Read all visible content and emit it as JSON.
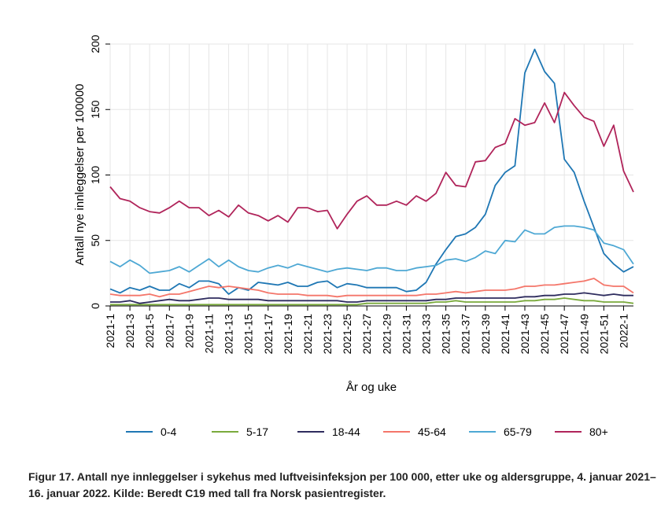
{
  "caption": "Figur 17. Antall nye innleggelser i sykehus med luftveisinfeksjon per 100 000, etter uke og aldersgruppe, 4. januar 2021–16. januar 2022. Kilde: Beredt C19 med tall fra Norsk pasientregister.",
  "chart_data": {
    "type": "line",
    "xlabel": "År og uke",
    "ylabel": "Antall nye innleggelser per 100000",
    "ylim": [
      0,
      200
    ],
    "yticks": [
      0,
      50,
      100,
      150,
      200
    ],
    "grid": true,
    "legend_position": "bottom",
    "x": [
      "2021-1",
      "2021-2",
      "2021-3",
      "2021-4",
      "2021-5",
      "2021-6",
      "2021-7",
      "2021-8",
      "2021-9",
      "2021-10",
      "2021-11",
      "2021-12",
      "2021-13",
      "2021-14",
      "2021-15",
      "2021-16",
      "2021-17",
      "2021-18",
      "2021-19",
      "2021-20",
      "2021-21",
      "2021-22",
      "2021-23",
      "2021-24",
      "2021-25",
      "2021-26",
      "2021-27",
      "2021-28",
      "2021-29",
      "2021-30",
      "2021-31",
      "2021-32",
      "2021-33",
      "2021-34",
      "2021-35",
      "2021-36",
      "2021-37",
      "2021-38",
      "2021-39",
      "2021-40",
      "2021-41",
      "2021-42",
      "2021-43",
      "2021-44",
      "2021-45",
      "2021-46",
      "2021-47",
      "2021-48",
      "2021-49",
      "2021-50",
      "2021-51",
      "2021-52",
      "2022-1",
      "2022-2"
    ],
    "xtick_labels": [
      "2021-1",
      "2021-3",
      "2021-5",
      "2021-7",
      "2021-9",
      "2021-11",
      "2021-13",
      "2021-15",
      "2021-17",
      "2021-19",
      "2021-21",
      "2021-23",
      "2021-25",
      "2021-27",
      "2021-29",
      "2021-31",
      "2021-33",
      "2021-35",
      "2021-37",
      "2021-39",
      "2021-41",
      "2021-43",
      "2021-45",
      "2021-47",
      "2021-49",
      "2021-51",
      "2022-1"
    ],
    "series": [
      {
        "name": "0-4",
        "color": "#1f77b4",
        "values": [
          13,
          10,
          14,
          12,
          15,
          12,
          12,
          17,
          14,
          19,
          19,
          17,
          9,
          14,
          12,
          18,
          17,
          16,
          18,
          15,
          15,
          18,
          19,
          14,
          17,
          16,
          14,
          14,
          14,
          14,
          11,
          12,
          18,
          32,
          43,
          53,
          55,
          60,
          70,
          92,
          102,
          107,
          178,
          196,
          179,
          170,
          112,
          102,
          80,
          60,
          40,
          32,
          26,
          30
        ]
      },
      {
        "name": "5-17",
        "color": "#7aaa3c",
        "values": [
          1,
          1,
          1,
          1,
          1,
          1,
          1,
          1,
          1,
          1,
          1,
          1,
          1,
          1,
          1,
          1,
          1,
          1,
          1,
          1,
          1,
          1,
          1,
          1,
          1,
          1,
          2,
          2,
          2,
          2,
          2,
          2,
          2,
          3,
          3,
          4,
          3,
          3,
          3,
          3,
          3,
          3,
          4,
          4,
          5,
          5,
          6,
          5,
          4,
          4,
          3,
          3,
          3,
          2
        ]
      },
      {
        "name": "18-44",
        "color": "#2e2c5e",
        "values": [
          3,
          3,
          4,
          2,
          3,
          4,
          5,
          4,
          4,
          5,
          6,
          6,
          5,
          5,
          5,
          5,
          4,
          4,
          4,
          4,
          4,
          4,
          4,
          4,
          3,
          3,
          4,
          4,
          4,
          4,
          4,
          4,
          4,
          5,
          5,
          6,
          6,
          6,
          6,
          6,
          6,
          6,
          7,
          7,
          8,
          8,
          9,
          9,
          10,
          9,
          8,
          9,
          8,
          8
        ]
      },
      {
        "name": "45-64",
        "color": "#f4766a",
        "values": [
          9,
          8,
          8,
          8,
          9,
          7,
          9,
          9,
          11,
          13,
          15,
          14,
          15,
          14,
          13,
          12,
          10,
          9,
          9,
          9,
          8,
          8,
          8,
          7,
          8,
          8,
          8,
          8,
          8,
          8,
          8,
          8,
          9,
          9,
          10,
          11,
          10,
          11,
          12,
          12,
          12,
          13,
          15,
          15,
          16,
          16,
          17,
          18,
          19,
          21,
          16,
          15,
          15,
          10
        ]
      },
      {
        "name": "65-79",
        "color": "#4ea8d4",
        "values": [
          34,
          30,
          35,
          31,
          25,
          26,
          27,
          30,
          26,
          31,
          36,
          30,
          35,
          30,
          27,
          26,
          29,
          31,
          29,
          32,
          30,
          28,
          26,
          28,
          29,
          28,
          27,
          29,
          29,
          27,
          27,
          29,
          30,
          31,
          35,
          36,
          34,
          37,
          42,
          40,
          50,
          49,
          58,
          55,
          55,
          60,
          61,
          61,
          60,
          58,
          48,
          46,
          43,
          32
        ]
      },
      {
        "name": "80+",
        "color": "#b0245a",
        "values": [
          91,
          82,
          80,
          75,
          72,
          71,
          75,
          80,
          75,
          75,
          69,
          73,
          68,
          77,
          71,
          69,
          65,
          69,
          64,
          75,
          75,
          72,
          73,
          59,
          70,
          80,
          84,
          77,
          77,
          80,
          77,
          84,
          80,
          86,
          102,
          92,
          91,
          110,
          111,
          121,
          124,
          143,
          138,
          140,
          155,
          140,
          163,
          153,
          144,
          141,
          122,
          138,
          103,
          87
        ]
      }
    ]
  }
}
